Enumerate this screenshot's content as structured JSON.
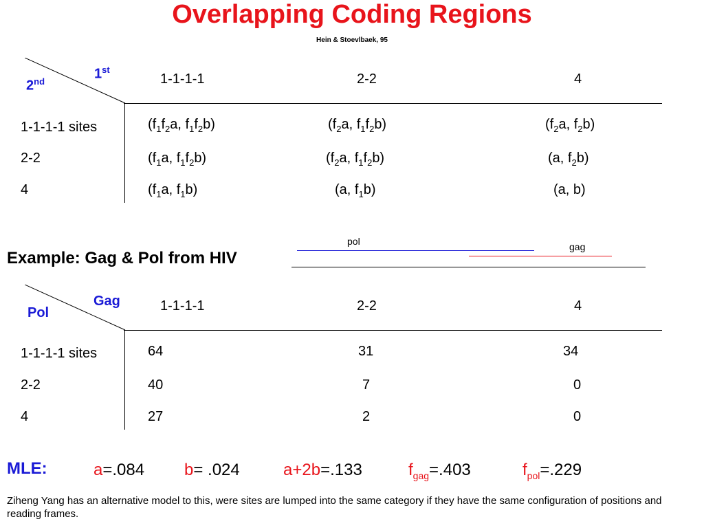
{
  "title": "Overlapping Coding Regions",
  "citation": "Hein & Stoevlbaek, 95",
  "table1": {
    "corner_first": {
      "base": "1",
      "sup": "st"
    },
    "corner_second": {
      "base": "2",
      "sup": "nd"
    },
    "columns": [
      "1-1-1-1",
      "2-2",
      "4"
    ],
    "rows": [
      "1-1-1-1 sites",
      "2-2",
      "4"
    ],
    "cells": [
      [
        "(f1f2a, f1f2b)",
        "(f2a, f1f2b)",
        "(f2a, f2b)"
      ],
      [
        "(f1a, f1f2b)",
        "(f2a, f1f2b)",
        "(a, f2b)"
      ],
      [
        "(f1a, f1b)",
        "(a, f1b)",
        "(a, b)"
      ]
    ]
  },
  "example": {
    "heading": "Example: Gag & Pol from HIV",
    "pol_label": "pol",
    "gag_label": "gag",
    "colors": {
      "pol": "#1a1ad6",
      "gag": "#e8141b"
    }
  },
  "table2": {
    "corner_first": "Gag",
    "corner_second": "Pol",
    "columns": [
      "1-1-1-1",
      "2-2",
      "4"
    ],
    "rows": [
      "1-1-1-1 sites",
      "2-2",
      "4"
    ],
    "cells": [
      [
        "64",
        "31",
        "34"
      ],
      [
        "40",
        "7",
        "0"
      ],
      [
        "27",
        "2",
        "0"
      ]
    ]
  },
  "mle": {
    "label": "MLE:",
    "a_name": "a",
    "a_value": "=.084",
    "b_name": "b",
    "b_value": "= .024",
    "a2b_name": "a+2b",
    "a2b_value": "=.133",
    "fgag_name": "f",
    "fgag_sub": "gag",
    "fgag_value": "=.403",
    "fpol_name": "f",
    "fpol_sub": "pol",
    "fpol_value": "=.229"
  },
  "footnote": "Ziheng Yang has an alternative model to this, were sites are lumped into the same category if they have the same configuration of positions and reading frames.",
  "colors": {
    "title": "#e8141b",
    "accent": "#1a1ad6"
  }
}
